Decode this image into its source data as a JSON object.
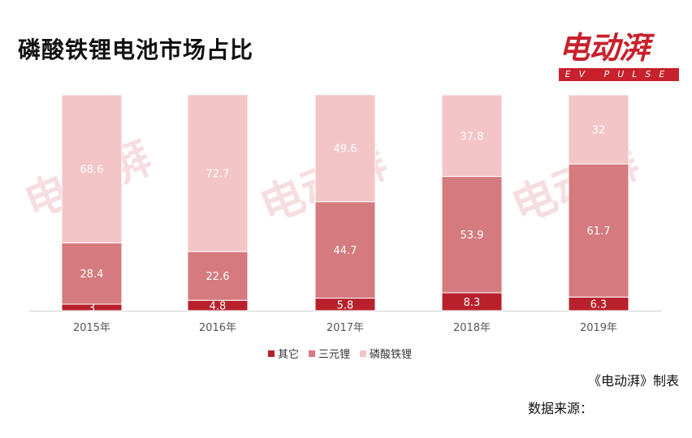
{
  "title": "磷酸铁锂电池市场占比",
  "logo": {
    "main": "电动湃",
    "sub": "EV PULSE"
  },
  "credit": "《电动湃》制表",
  "source": "数据来源：",
  "colors": {
    "other": "#b8202c",
    "ternary": "#d57a7e",
    "lfp": "#f3c5c7",
    "brand": "#c8212c"
  },
  "chart_data": {
    "type": "bar",
    "stacked": true,
    "categories": [
      "2015年",
      "2016年",
      "2017年",
      "2018年",
      "2019年"
    ],
    "series": [
      {
        "name": "其它",
        "values": [
          3,
          4.8,
          5.8,
          8.3,
          6.3
        ]
      },
      {
        "name": "三元锂",
        "values": [
          28.4,
          22.6,
          44.7,
          53.9,
          61.7
        ]
      },
      {
        "name": "磷酸铁锂",
        "values": [
          68.6,
          72.7,
          49.6,
          37.8,
          32
        ]
      }
    ],
    "ylim": [
      0,
      100
    ],
    "legend_position": "bottom",
    "grid": false
  }
}
